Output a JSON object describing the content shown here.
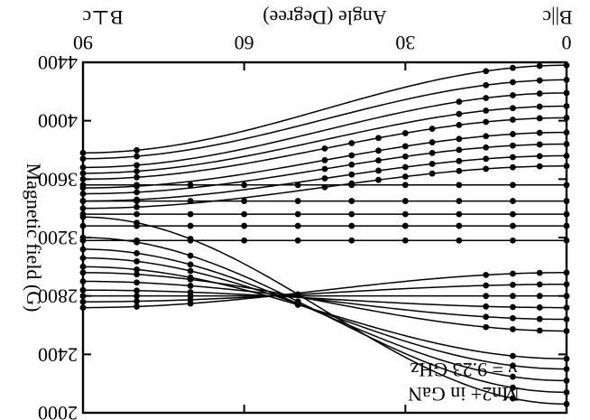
{
  "chart_data": {
    "type": "line",
    "orientation": "rotated-180",
    "title": "",
    "xlabel": "Angle (Degree)",
    "ylabel": "Magnetic field (G)",
    "x_left_label": "B||c",
    "x_right_label": "B⊥c",
    "xlim": [
      0,
      90
    ],
    "ylim": [
      2000,
      4400
    ],
    "x_ticks": [
      0,
      30,
      60,
      90
    ],
    "x_tick_labels": [
      "0",
      "30",
      "60",
      "90"
    ],
    "y_ticks": [
      2000,
      2400,
      2800,
      3200,
      3600,
      4000,
      4400
    ],
    "y_tick_labels": [
      "2000",
      "2400",
      "2800",
      "3200",
      "3600",
      "4000",
      "4400"
    ],
    "annotations": [
      "Mn2+ in GaN",
      "ν = 9.23 GHz"
    ],
    "grid": false,
    "angles_sampled": [
      0,
      5,
      10,
      15,
      20,
      25,
      30,
      35,
      40,
      45,
      50,
      55,
      60,
      65,
      70,
      75,
      80,
      85,
      90
    ],
    "series": [
      {
        "B0": 2060,
        "B90": 3340,
        "points_x": [
          0,
          10,
          50,
          70,
          80,
          90
        ]
      },
      {
        "B0": 2140,
        "B90": 3200,
        "points_x": [
          0,
          10,
          50,
          70,
          80,
          90
        ]
      },
      {
        "B0": 2220,
        "B90": 3120,
        "points_x": [
          0,
          10,
          50,
          70,
          80,
          90
        ]
      },
      {
        "B0": 2300,
        "B90": 3060,
        "points_x": [
          0,
          10,
          50,
          70,
          80,
          90
        ]
      },
      {
        "B0": 2370,
        "B90": 3000,
        "points_x": [
          0,
          10,
          50,
          70,
          80,
          90
        ]
      },
      {
        "B0": 2560,
        "B90": 2960,
        "points_x": [
          0,
          5,
          10,
          15,
          70,
          80,
          90
        ]
      },
      {
        "B0": 2640,
        "B90": 2900,
        "points_x": [
          0,
          5,
          10,
          15,
          70,
          80,
          90
        ]
      },
      {
        "B0": 2720,
        "B90": 2840,
        "points_x": [
          0,
          5,
          10,
          15,
          70,
          80,
          90
        ]
      },
      {
        "B0": 2800,
        "B90": 2800,
        "points_x": [
          0,
          5,
          10,
          15,
          70,
          80,
          90
        ]
      },
      {
        "B0": 2880,
        "B90": 2760,
        "points_x": [
          0,
          5,
          10,
          15,
          70,
          80,
          90
        ]
      },
      {
        "B0": 2960,
        "B90": 2720,
        "points_x": [
          0,
          5,
          10,
          15,
          70,
          80,
          90
        ]
      },
      {
        "B0": 3180,
        "B90": 3180,
        "points_x": [
          0,
          10,
          20,
          30,
          40,
          50,
          60,
          70,
          80,
          90
        ]
      },
      {
        "B0": 3280,
        "B90": 3280,
        "points_x": [
          0,
          10,
          20,
          30,
          40,
          50,
          60,
          70,
          80,
          90
        ]
      },
      {
        "B0": 3360,
        "B90": 3360,
        "points_x": [
          0,
          10,
          20,
          30,
          40,
          50,
          60,
          70,
          80,
          90
        ]
      },
      {
        "B0": 3450,
        "B90": 3450,
        "points_x": [
          0,
          10,
          20,
          30,
          40,
          50,
          60,
          70,
          80,
          90
        ]
      },
      {
        "B0": 3560,
        "B90": 3560,
        "points_x": [
          0,
          10,
          20,
          30,
          40,
          50,
          60,
          70,
          80,
          90
        ]
      },
      {
        "B0": 3690,
        "B90": 3400,
        "points_x": [
          0,
          5,
          10,
          15,
          20,
          25,
          30,
          35,
          40,
          45,
          80,
          90
        ]
      },
      {
        "B0": 3760,
        "B90": 3450,
        "points_x": [
          0,
          5,
          10,
          15,
          20,
          25,
          30,
          35,
          40,
          45,
          80,
          90
        ]
      },
      {
        "B0": 3840,
        "B90": 3500,
        "points_x": [
          0,
          5,
          10,
          15,
          20,
          25,
          30,
          35,
          40,
          45,
          80,
          90
        ]
      },
      {
        "B0": 3920,
        "B90": 3540,
        "points_x": [
          0,
          5,
          10,
          15,
          20,
          25,
          30,
          35,
          40,
          45,
          80,
          90
        ]
      },
      {
        "B0": 4020,
        "B90": 3600,
        "points_x": [
          0,
          5,
          10,
          15,
          20,
          25,
          30,
          35,
          40,
          45,
          80,
          90
        ]
      },
      {
        "B0": 4100,
        "B90": 3640,
        "points_x": [
          0,
          5,
          10,
          15,
          20,
          80,
          90
        ]
      },
      {
        "B0": 4190,
        "B90": 3680,
        "points_x": [
          0,
          5,
          10,
          15,
          20,
          80,
          90
        ]
      },
      {
        "B0": 4280,
        "B90": 3740,
        "points_x": [
          0,
          5,
          10,
          15,
          80,
          90
        ]
      },
      {
        "B0": 4380,
        "B90": 3780,
        "points_x": [
          0,
          5,
          10,
          15,
          80,
          90
        ]
      }
    ]
  }
}
